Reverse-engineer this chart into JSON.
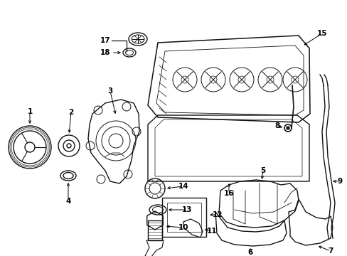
{
  "background_color": "#ffffff",
  "line_color": "#111111",
  "fig_width": 4.89,
  "fig_height": 3.6,
  "dpi": 100
}
